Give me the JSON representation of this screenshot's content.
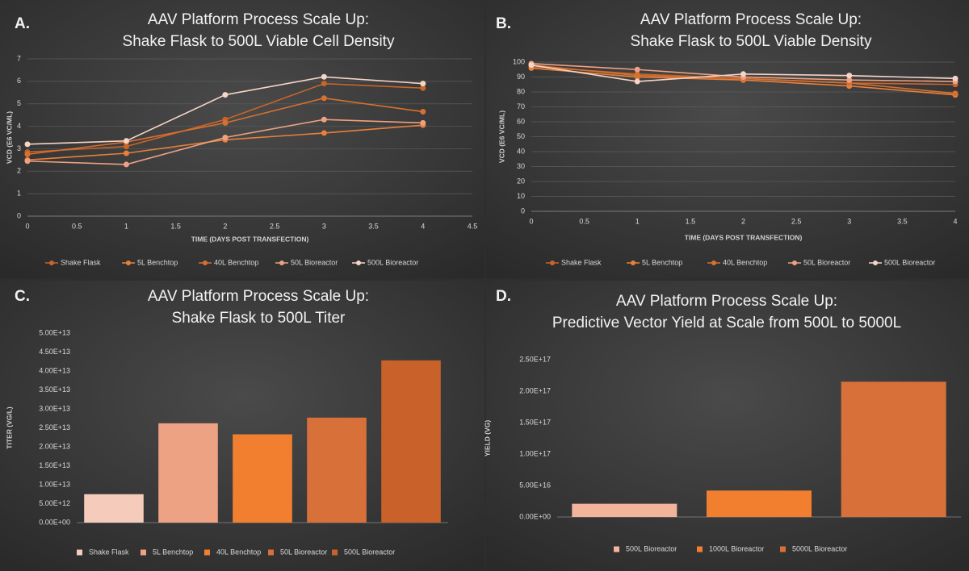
{
  "chart_data": [
    {
      "type": "line",
      "label": "A.",
      "title": [
        "AAV Platform Process Scale Up:",
        "Shake Flask to 500L Viable Cell Density"
      ],
      "x_label": "TIME (DAYS POST TRANSFECTION)",
      "y_label": "VCD (E6 VC/ML)",
      "x": [
        0,
        1,
        2,
        3,
        4
      ],
      "xlim": [
        0,
        4.5
      ],
      "xticks": [
        0,
        0.5,
        1,
        1.5,
        2,
        2.5,
        3,
        3.5,
        4,
        4.5
      ],
      "ylim": [
        0,
        7
      ],
      "yticks": [
        0,
        1,
        2,
        3,
        4,
        5,
        6,
        7
      ],
      "grid": true,
      "series": [
        {
          "name": "Shake Flask",
          "color": "#c8652a",
          "values": [
            2.85,
            3.1,
            4.3,
            5.9,
            5.7
          ]
        },
        {
          "name": "5L Benchtop",
          "color": "#e8803a",
          "values": [
            2.5,
            2.8,
            3.4,
            3.7,
            4.05
          ]
        },
        {
          "name": "40L Benchtop",
          "color": "#d8702f",
          "values": [
            2.75,
            3.3,
            4.15,
            5.25,
            4.65
          ]
        },
        {
          "name": "50L Bioreactor",
          "color": "#eca282",
          "values": [
            2.45,
            2.3,
            3.5,
            4.3,
            4.15
          ]
        },
        {
          "name": "500L Bioreactor",
          "color": "#f6d4c6",
          "values": [
            3.2,
            3.35,
            5.4,
            6.2,
            5.9
          ]
        }
      ]
    },
    {
      "type": "line",
      "label": "B.",
      "title": [
        "AAV Platform Process Scale Up:",
        "Shake Flask to 500L Viable Density"
      ],
      "x_label": "TIME (DAYS POST TRANSFECTION)",
      "y_label": "VCD (E6 VC/ML)",
      "x": [
        0,
        1,
        2,
        3,
        4
      ],
      "xlim": [
        0,
        4
      ],
      "xticks": [
        0,
        0.5,
        1,
        1.5,
        2,
        2.5,
        3,
        3.5,
        4
      ],
      "ylim": [
        0,
        100
      ],
      "yticks": [
        0,
        10,
        20,
        30,
        40,
        50,
        60,
        70,
        80,
        90,
        100
      ],
      "grid": true,
      "series": [
        {
          "name": "Shake Flask",
          "color": "#c8652a",
          "values": [
            97,
            92,
            89,
            86,
            85
          ]
        },
        {
          "name": "5L Benchtop",
          "color": "#e8803a",
          "values": [
            96,
            90,
            88,
            84,
            78
          ]
        },
        {
          "name": "40L Benchtop",
          "color": "#d8702f",
          "values": [
            98,
            91,
            89,
            86,
            79
          ]
        },
        {
          "name": "50L Bioreactor",
          "color": "#eca282",
          "values": [
            99,
            95,
            90,
            88,
            87
          ]
        },
        {
          "name": "500L Bioreactor",
          "color": "#f6d4c6",
          "values": [
            98,
            87,
            92,
            91,
            89
          ]
        }
      ]
    },
    {
      "type": "bar",
      "label": "C.",
      "title": [
        "AAV Platform Process Scale Up:",
        "Shake Flask to 500L Titer"
      ],
      "y_label": "TITER (VG/L)",
      "categories": [
        "Shake Flask",
        "5L Benchtop",
        "40L Benchtop",
        "50L Bioreactor",
        "500L Bioreactor"
      ],
      "colors": [
        "#f5cbbb",
        "#eda283",
        "#f27f30",
        "#d8703a",
        "#c9622a"
      ],
      "values": [
        7500000000000.0,
        26200000000000.0,
        23300000000000.0,
        27700000000000.0,
        42800000000000.0
      ],
      "ylim": [
        0,
        50000000000000.0
      ],
      "grid": false,
      "yticks": [
        {
          "value": 0,
          "label": "0.00E+00"
        },
        {
          "value": 5000000000000.0,
          "label": "5.00E+12"
        },
        {
          "value": 10000000000000.0,
          "label": "1.00E+13"
        },
        {
          "value": 15000000000000.0,
          "label": "1.50E+13"
        },
        {
          "value": 20000000000000.0,
          "label": "2.00E+13"
        },
        {
          "value": 25000000000000.0,
          "label": "2.50E+13"
        },
        {
          "value": 30000000000000.0,
          "label": "3.00E+13"
        },
        {
          "value": 35000000000000.0,
          "label": "3.50E+13"
        },
        {
          "value": 40000000000000.0,
          "label": "4.00E+13"
        },
        {
          "value": 45000000000000.0,
          "label": "4.50E+13"
        },
        {
          "value": 50000000000000.0,
          "label": "5.00E+13"
        }
      ]
    },
    {
      "type": "bar",
      "label": "D.",
      "title": [
        "AAV Platform Process Scale Up:",
        "Predictive Vector Yield at Scale from 500L to 5000L"
      ],
      "y_label": "YIELD (VG)",
      "categories": [
        "500L Bioreactor",
        "1000L Bioreactor",
        "5000L Bioreactor"
      ],
      "colors": [
        "#f2b59b",
        "#f27f30",
        "#d8703a"
      ],
      "values": [
        2.1e+16,
        4.2e+16,
        2.15e+17
      ],
      "ylim": [
        0,
        2.5e+17
      ],
      "grid": false,
      "yticks": [
        {
          "value": 0,
          "label": "0.00E+00"
        },
        {
          "value": 5e+16,
          "label": "5.00E+16"
        },
        {
          "value": 1e+17,
          "label": "1.00E+17"
        },
        {
          "value": 1.5e+17,
          "label": "1.50E+17"
        },
        {
          "value": 2e+17,
          "label": "2.00E+17"
        },
        {
          "value": 2.5e+17,
          "label": "2.50E+17"
        }
      ]
    }
  ]
}
